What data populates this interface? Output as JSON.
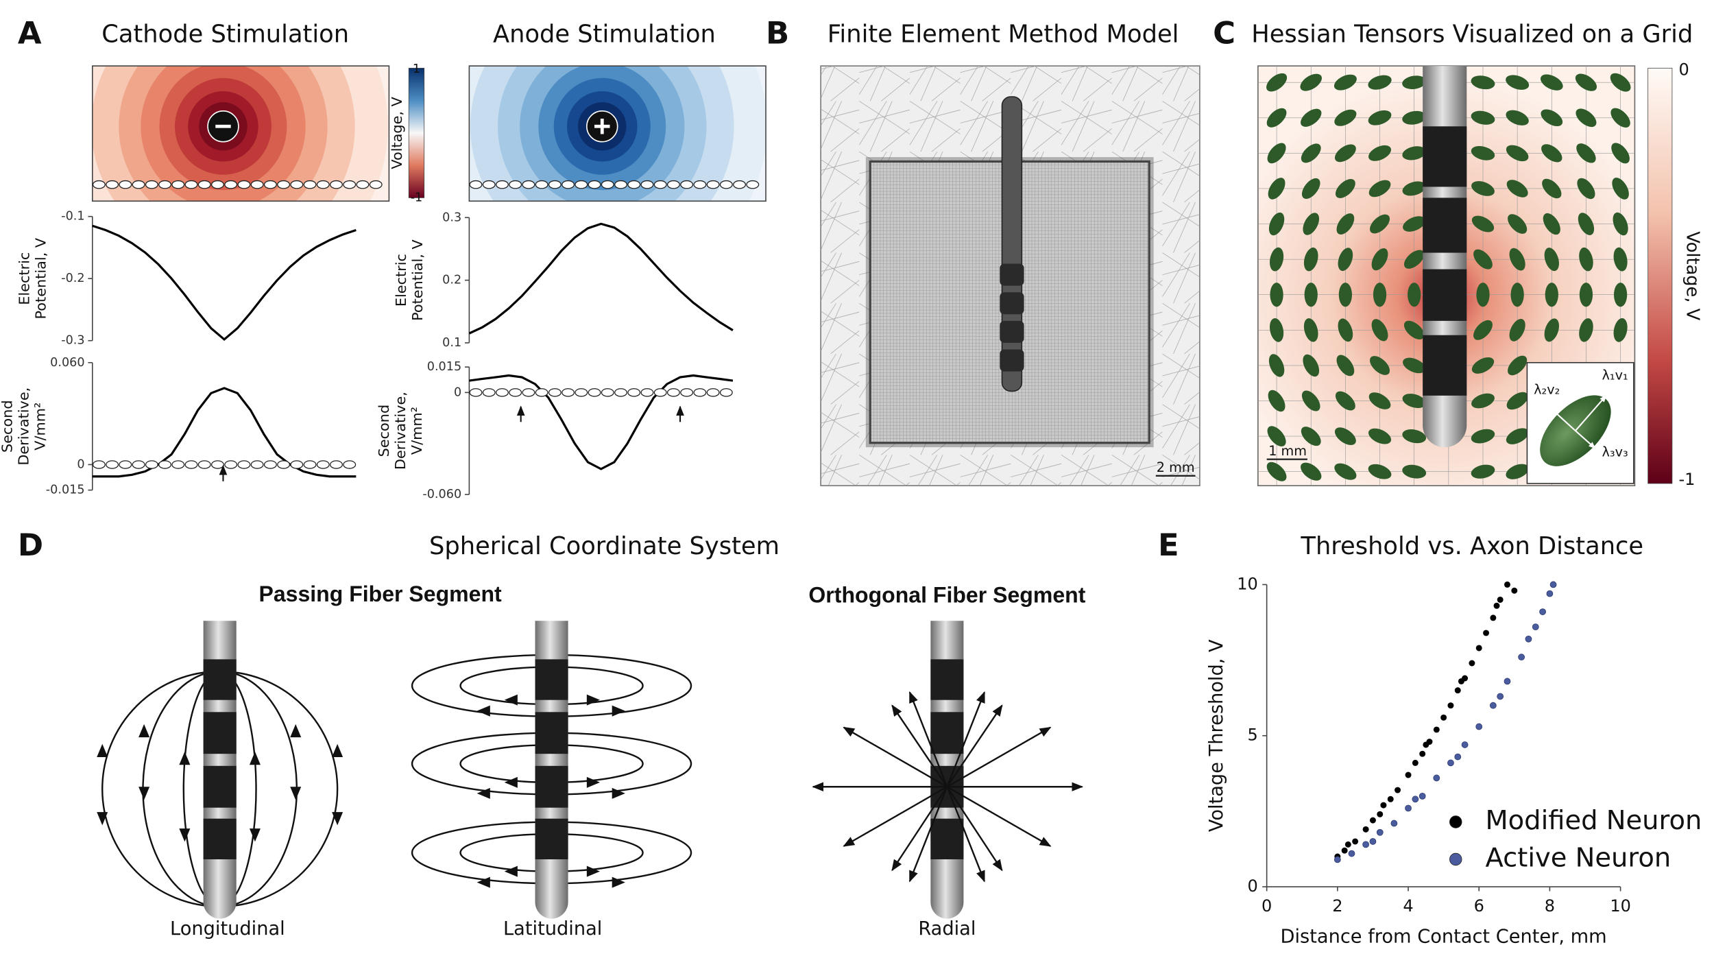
{
  "panels": {
    "A": {
      "letter": "A",
      "titles": [
        "Cathode Stimulation",
        "Anode Stimulation"
      ],
      "colorbar": {
        "label": "Voltage, V",
        "ticks": [
          1,
          -1
        ]
      }
    },
    "B": {
      "letter": "B",
      "title": "Finite Element Method Model",
      "scale_bar": "2 mm"
    },
    "C": {
      "letter": "C",
      "title": "Hessian Tensors Visualized on a Grid",
      "scale_bar": "1 mm",
      "inset_labels": [
        "λ₁v₁",
        "λ₂v₂",
        "λ₃v₃"
      ],
      "colorbar": {
        "label": "Voltage, V",
        "ticks": [
          0,
          -1
        ]
      }
    },
    "D": {
      "letter": "D",
      "title": "Spherical Coordinate System",
      "subtitles": [
        "Passing Fiber Segment",
        "Orthogonal Fiber Segment"
      ],
      "labels": [
        "Longitudinal",
        "Latitudinal",
        "Radial"
      ]
    },
    "E": {
      "letter": "E"
    }
  },
  "chart_data": [
    {
      "type": "line",
      "y_label": [
        "Electric",
        "Potential, V"
      ],
      "color": "#000000",
      "values": [
        -0.115,
        -0.122,
        -0.131,
        -0.143,
        -0.158,
        -0.177,
        -0.2,
        -0.226,
        -0.254,
        -0.28,
        -0.298,
        -0.28,
        -0.255,
        -0.228,
        -0.203,
        -0.181,
        -0.163,
        -0.149,
        -0.138,
        -0.129,
        -0.122
      ],
      "ylim": [
        -0.3,
        -0.1
      ],
      "yticks": [
        -0.1,
        -0.2,
        -0.3
      ]
    },
    {
      "type": "line",
      "y_label": [
        "Second",
        "Derivative,",
        "V/mm²"
      ],
      "color": "#000000",
      "values": [
        -0.007,
        -0.007,
        -0.007,
        -0.006,
        -0.004,
        0,
        0.006,
        0.018,
        0.032,
        0.042,
        0.045,
        0.042,
        0.032,
        0.018,
        0.006,
        0,
        -0.004,
        -0.006,
        -0.007,
        -0.007,
        -0.007
      ],
      "ylim": [
        -0.015,
        0.06
      ],
      "yticks": [
        {
          "value": 0.06,
          "label": "0.060"
        },
        0,
        -0.015
      ]
    },
    {
      "type": "line",
      "y_label": [
        "Electric",
        "Potential, V"
      ],
      "color": "#000000",
      "values": [
        0.115,
        0.125,
        0.138,
        0.155,
        0.175,
        0.198,
        0.222,
        0.247,
        0.268,
        0.283,
        0.29,
        0.284,
        0.27,
        0.25,
        0.227,
        0.204,
        0.183,
        0.164,
        0.148,
        0.133,
        0.12
      ],
      "ylim": [
        0.1,
        0.3
      ],
      "yticks": [
        0.3,
        0.2,
        0.1
      ]
    },
    {
      "type": "line",
      "y_label": [
        "Second",
        "Derivative,",
        "V/mm²"
      ],
      "color": "#000000",
      "values": [
        0.007,
        0.008,
        0.009,
        0.01,
        0.009,
        0.005,
        -0.003,
        -0.016,
        -0.03,
        -0.041,
        -0.045,
        -0.041,
        -0.03,
        -0.016,
        -0.003,
        0.005,
        0.009,
        0.01,
        0.009,
        0.008,
        0.007
      ],
      "ylim": [
        -0.06,
        0.015
      ],
      "yticks": [
        0.015,
        0,
        {
          "value": -0.06,
          "label": "-0.060"
        }
      ]
    },
    {
      "type": "scatter",
      "title": "Threshold vs. Axon Distance",
      "x_label": "Distance from Contact Center, mm",
      "y_label": "Voltage Threshold, V",
      "xlim": [
        0,
        10
      ],
      "ylim": [
        0,
        10
      ],
      "xticks": [
        0,
        2,
        4,
        6,
        8,
        10
      ],
      "yticks": [
        0,
        5,
        10
      ],
      "series": [
        {
          "name": "Modified Neuron",
          "color": "#000000",
          "x": [
            2.0,
            2.2,
            2.3,
            2.5,
            2.8,
            3.0,
            3.2,
            3.3,
            3.5,
            3.7,
            4.0,
            4.2,
            4.4,
            4.5,
            4.6,
            4.8,
            5.0,
            5.2,
            5.4,
            5.5,
            5.6,
            5.8,
            6.0,
            6.2,
            6.4,
            6.5,
            6.6,
            6.8,
            7.0
          ],
          "values": [
            1.0,
            1.2,
            1.4,
            1.5,
            1.9,
            2.2,
            2.4,
            2.7,
            2.9,
            3.2,
            3.7,
            4.1,
            4.4,
            4.7,
            4.8,
            5.2,
            5.6,
            6.0,
            6.5,
            6.8,
            6.9,
            7.4,
            7.9,
            8.4,
            8.9,
            9.3,
            9.5,
            10.0,
            9.8
          ]
        },
        {
          "name": "Active Neuron",
          "color": "#4a5c9e",
          "x": [
            2.0,
            2.4,
            2.8,
            3.0,
            3.2,
            3.6,
            4.0,
            4.2,
            4.4,
            4.8,
            5.2,
            5.4,
            5.6,
            6.0,
            6.4,
            6.6,
            6.8,
            7.2,
            7.4,
            7.6,
            7.8,
            8.0,
            8.1
          ],
          "values": [
            0.9,
            1.1,
            1.4,
            1.5,
            1.8,
            2.1,
            2.6,
            2.9,
            3.0,
            3.6,
            4.1,
            4.3,
            4.7,
            5.3,
            6.0,
            6.3,
            6.8,
            7.6,
            8.2,
            8.6,
            9.1,
            9.7,
            10.0
          ]
        }
      ]
    }
  ]
}
